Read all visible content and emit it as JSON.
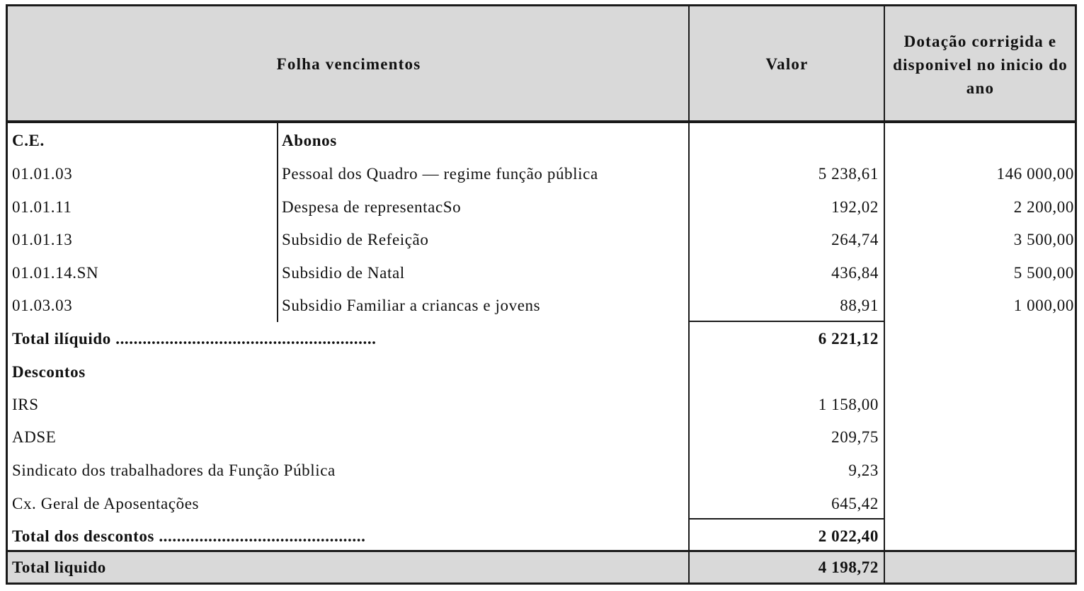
{
  "header": {
    "title": "Folha  vencimentos",
    "valor": "Valor",
    "dotacao": "Dotação corrigida e disponivel no  inicio do  ano"
  },
  "abonos": {
    "ce_label": "C.E.",
    "section_label": "Abonos",
    "rows": [
      {
        "code": "01.01.03",
        "desc": "Pessoal  dos  Quadro  —  regime  função  pública",
        "valor": "5 238,61",
        "dotacao": "146 000,00"
      },
      {
        "code": "01.01.11",
        "desc": "Despesa  de  representacSo",
        "valor": "192,02",
        "dotacao": "2 200,00"
      },
      {
        "code": "01.01.13",
        "desc": "Subsidio  de  Refeição",
        "valor": "264,74",
        "dotacao": "3 500,00"
      },
      {
        "code": "01.01.14.SN",
        "desc": "Subsidio  de  Natal",
        "valor": "436,84",
        "dotacao": "5 500,00"
      },
      {
        "code": "01.03.03",
        "desc": "Subsidio  Familiar  a  criancas  e  jovens",
        "valor": "88,91",
        "dotacao": "1 000,00"
      }
    ],
    "total_label": "Total  ilíquido ..........................................................",
    "total_value": "6 221,12"
  },
  "descontos": {
    "section_label": "Descontos",
    "rows": [
      {
        "desc": "IRS",
        "valor": "1 158,00"
      },
      {
        "desc": "ADSE",
        "valor": "209,75"
      },
      {
        "desc": "Sindicato  dos  trabalhadores  da  Função  Pública",
        "valor": "9,23"
      },
      {
        "desc": "Cx.  Geral  de  Aposentações",
        "valor": "645,42"
      }
    ],
    "total_label": "Total  dos  descontos ..............................................",
    "total_value": "2 022,40"
  },
  "footer": {
    "label": "Total  liquido",
    "value": "4 198,72"
  }
}
